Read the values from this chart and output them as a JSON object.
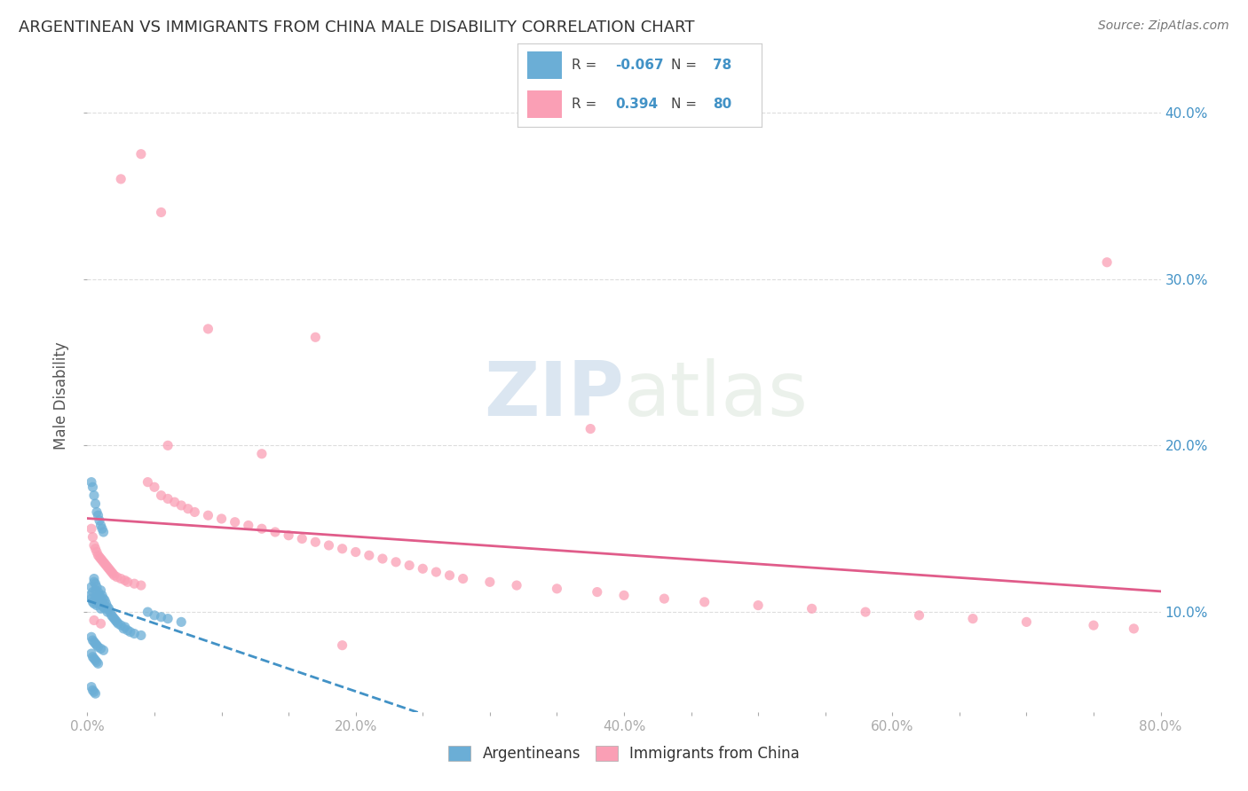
{
  "title": "ARGENTINEAN VS IMMIGRANTS FROM CHINA MALE DISABILITY CORRELATION CHART",
  "source": "Source: ZipAtlas.com",
  "ylabel": "Male Disability",
  "xlim": [
    0.0,
    0.8
  ],
  "ylim": [
    0.04,
    0.42
  ],
  "ytick_positions": [
    0.1,
    0.2,
    0.3,
    0.4
  ],
  "ytick_labels": [
    "10.0%",
    "20.0%",
    "30.0%",
    "40.0%"
  ],
  "background_color": "#ffffff",
  "grid_color": "#dddddd",
  "blue_color": "#6baed6",
  "pink_color": "#fa9fb5",
  "blue_line_color": "#4292c6",
  "pink_line_color": "#e05c8a",
  "watermark_zip": "ZIP",
  "watermark_atlas": "atlas",
  "legend_R_blue": "-0.067",
  "legend_N_blue": "78",
  "legend_R_pink": "0.394",
  "legend_N_pink": "80",
  "blue_scatter_x": [
    0.002,
    0.003,
    0.003,
    0.004,
    0.004,
    0.005,
    0.005,
    0.005,
    0.006,
    0.006,
    0.006,
    0.007,
    0.007,
    0.007,
    0.008,
    0.008,
    0.009,
    0.009,
    0.01,
    0.01,
    0.01,
    0.011,
    0.011,
    0.012,
    0.012,
    0.013,
    0.013,
    0.014,
    0.015,
    0.015,
    0.016,
    0.017,
    0.018,
    0.019,
    0.02,
    0.021,
    0.022,
    0.023,
    0.025,
    0.027,
    0.028,
    0.03,
    0.032,
    0.035,
    0.04,
    0.045,
    0.05,
    0.055,
    0.06,
    0.07,
    0.003,
    0.004,
    0.005,
    0.006,
    0.007,
    0.008,
    0.009,
    0.01,
    0.011,
    0.012,
    0.003,
    0.004,
    0.005,
    0.006,
    0.007,
    0.008,
    0.003,
    0.004,
    0.005,
    0.006,
    0.003,
    0.004,
    0.005,
    0.006,
    0.007,
    0.008,
    0.01,
    0.012
  ],
  "blue_scatter_y": [
    0.11,
    0.115,
    0.108,
    0.112,
    0.106,
    0.12,
    0.118,
    0.105,
    0.117,
    0.113,
    0.108,
    0.115,
    0.109,
    0.104,
    0.112,
    0.107,
    0.11,
    0.105,
    0.113,
    0.108,
    0.102,
    0.11,
    0.106,
    0.108,
    0.103,
    0.107,
    0.102,
    0.105,
    0.103,
    0.1,
    0.102,
    0.1,
    0.098,
    0.097,
    0.096,
    0.095,
    0.094,
    0.093,
    0.092,
    0.09,
    0.091,
    0.089,
    0.088,
    0.087,
    0.086,
    0.1,
    0.098,
    0.097,
    0.096,
    0.094,
    0.178,
    0.175,
    0.17,
    0.165,
    0.16,
    0.158,
    0.155,
    0.152,
    0.15,
    0.148,
    0.075,
    0.073,
    0.072,
    0.071,
    0.07,
    0.069,
    0.055,
    0.053,
    0.052,
    0.051,
    0.085,
    0.083,
    0.082,
    0.081,
    0.08,
    0.079,
    0.078,
    0.077
  ],
  "pink_scatter_x": [
    0.003,
    0.004,
    0.005,
    0.006,
    0.007,
    0.008,
    0.009,
    0.01,
    0.011,
    0.012,
    0.013,
    0.014,
    0.015,
    0.016,
    0.017,
    0.018,
    0.019,
    0.02,
    0.022,
    0.025,
    0.028,
    0.03,
    0.035,
    0.04,
    0.045,
    0.05,
    0.055,
    0.06,
    0.065,
    0.07,
    0.075,
    0.08,
    0.09,
    0.1,
    0.11,
    0.12,
    0.13,
    0.14,
    0.15,
    0.16,
    0.17,
    0.18,
    0.19,
    0.2,
    0.21,
    0.22,
    0.23,
    0.24,
    0.25,
    0.26,
    0.27,
    0.28,
    0.3,
    0.32,
    0.35,
    0.38,
    0.4,
    0.43,
    0.46,
    0.5,
    0.54,
    0.58,
    0.62,
    0.66,
    0.7,
    0.75,
    0.78,
    0.04,
    0.055,
    0.09,
    0.17,
    0.375,
    0.76,
    0.025,
    0.06,
    0.13,
    0.19,
    0.005,
    0.01
  ],
  "pink_scatter_y": [
    0.15,
    0.145,
    0.14,
    0.138,
    0.136,
    0.134,
    0.133,
    0.132,
    0.131,
    0.13,
    0.129,
    0.128,
    0.127,
    0.126,
    0.125,
    0.124,
    0.123,
    0.122,
    0.121,
    0.12,
    0.119,
    0.118,
    0.117,
    0.116,
    0.178,
    0.175,
    0.17,
    0.168,
    0.166,
    0.164,
    0.162,
    0.16,
    0.158,
    0.156,
    0.154,
    0.152,
    0.15,
    0.148,
    0.146,
    0.144,
    0.142,
    0.14,
    0.138,
    0.136,
    0.134,
    0.132,
    0.13,
    0.128,
    0.126,
    0.124,
    0.122,
    0.12,
    0.118,
    0.116,
    0.114,
    0.112,
    0.11,
    0.108,
    0.106,
    0.104,
    0.102,
    0.1,
    0.098,
    0.096,
    0.094,
    0.092,
    0.09,
    0.375,
    0.34,
    0.27,
    0.265,
    0.21,
    0.31,
    0.36,
    0.2,
    0.195,
    0.08,
    0.095,
    0.093
  ]
}
